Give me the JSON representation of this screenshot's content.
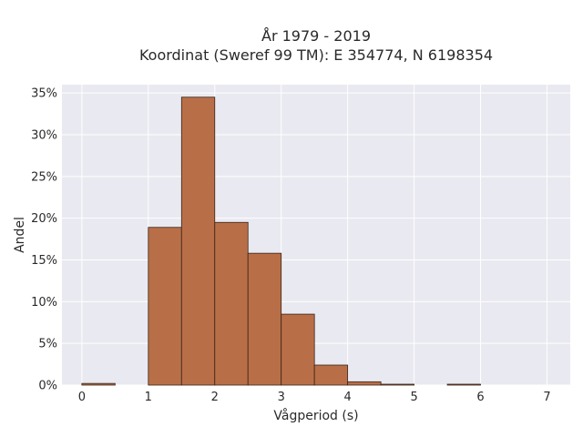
{
  "chart_data": {
    "type": "bar",
    "title_line1": "År 1979 - 2019",
    "title_line2": "Koordinat (Sweref 99 TM): E 354774, N 6198354",
    "xlabel": "Vågperiod (s)",
    "ylabel": "Andel",
    "xlim": [
      -0.3,
      7.35
    ],
    "ylim": [
      0,
      36
    ],
    "x_ticks": [
      0,
      1,
      2,
      3,
      4,
      5,
      6,
      7
    ],
    "y_ticks": [
      {
        "value": 0,
        "label": "0%"
      },
      {
        "value": 5,
        "label": "5%"
      },
      {
        "value": 10,
        "label": "10%"
      },
      {
        "value": 15,
        "label": "15%"
      },
      {
        "value": 20,
        "label": "20%"
      },
      {
        "value": 25,
        "label": "25%"
      },
      {
        "value": 30,
        "label": "30%"
      },
      {
        "value": 35,
        "label": "35%"
      }
    ],
    "bin_width": 0.5,
    "bins": [
      {
        "x0": 0.0,
        "value": 0.2
      },
      {
        "x0": 0.5,
        "value": 0.0
      },
      {
        "x0": 1.0,
        "value": 18.9
      },
      {
        "x0": 1.5,
        "value": 34.5
      },
      {
        "x0": 2.0,
        "value": 19.5
      },
      {
        "x0": 2.5,
        "value": 15.8
      },
      {
        "x0": 3.0,
        "value": 8.5
      },
      {
        "x0": 3.5,
        "value": 2.4
      },
      {
        "x0": 4.0,
        "value": 0.4
      },
      {
        "x0": 4.5,
        "value": 0.1
      },
      {
        "x0": 5.0,
        "value": 0.0
      },
      {
        "x0": 5.5,
        "value": 0.1
      }
    ],
    "grid": true,
    "bar_color": "#b86f48",
    "bar_edge_color": "#3a2418",
    "plot_bg": "#e9e9f1",
    "grid_color": "#ffffff"
  }
}
